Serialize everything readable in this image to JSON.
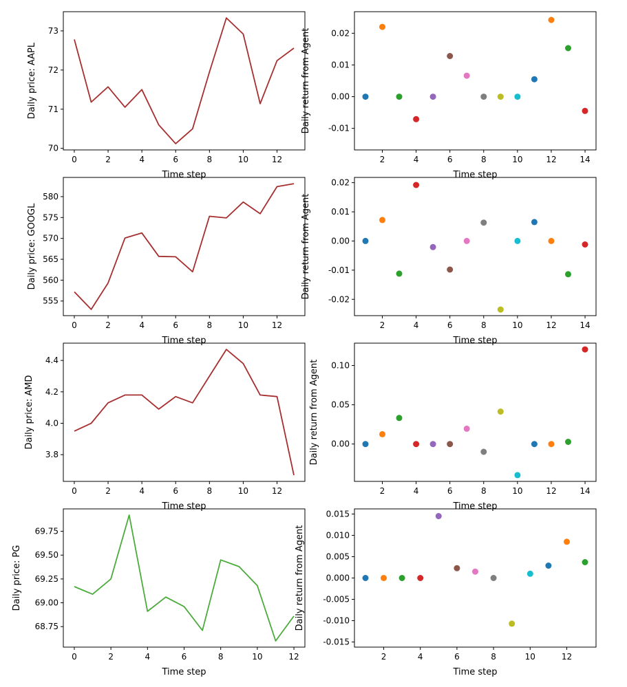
{
  "chart_data": [
    {
      "type": "line",
      "xlabel": "Time step",
      "ylabel": "Daily price: AAPL",
      "x": [
        0,
        1,
        2,
        3,
        4,
        5,
        6,
        7,
        8,
        9,
        10,
        11,
        12,
        13
      ],
      "values": [
        72.78,
        71.18,
        71.57,
        71.05,
        71.5,
        70.6,
        70.12,
        70.5,
        71.95,
        73.33,
        72.92,
        71.14,
        72.24,
        72.56
      ],
      "xticks": [
        0,
        2,
        4,
        6,
        8,
        10,
        12
      ],
      "yticks": [
        70,
        71,
        72,
        73
      ],
      "xlim": [
        -0.65,
        13.65
      ],
      "ylim": [
        69.96,
        73.49
      ],
      "line_color": "#a62e2e",
      "ytick_decimals": 0
    },
    {
      "type": "scatter",
      "xlabel": "Time step",
      "ylabel": "Daily return from Agent",
      "x": [
        1,
        2,
        3,
        4,
        5,
        6,
        7,
        8,
        9,
        10,
        11,
        12,
        13,
        14
      ],
      "values": [
        0.0,
        0.022,
        0.0,
        -0.0071,
        0.0,
        0.0128,
        0.0066,
        0.0,
        0.0,
        0.0,
        0.0055,
        0.0242,
        0.0153,
        -0.0045
      ],
      "xticks": [
        2,
        4,
        6,
        8,
        10,
        12,
        14
      ],
      "yticks": [
        -0.01,
        0.0,
        0.01,
        0.02
      ],
      "xlim": [
        0.35,
        14.65
      ],
      "ylim": [
        -0.0168,
        0.0268
      ],
      "ytick_decimals": 2
    },
    {
      "type": "line",
      "xlabel": "Time step",
      "ylabel": "Daily price: GOOGL",
      "x": [
        0,
        1,
        2,
        3,
        4,
        5,
        6,
        7,
        8,
        9,
        10,
        11,
        12,
        13
      ],
      "values": [
        557.2,
        553.0,
        559.3,
        570.1,
        571.3,
        565.7,
        565.6,
        562.0,
        575.3,
        574.9,
        578.7,
        575.9,
        582.4,
        583.1
      ],
      "xticks": [
        0,
        2,
        4,
        6,
        8,
        10,
        12
      ],
      "yticks": [
        555,
        560,
        565,
        570,
        575,
        580
      ],
      "xlim": [
        -0.65,
        13.65
      ],
      "ylim": [
        551.5,
        584.6
      ],
      "line_color": "#a62e2e",
      "ytick_decimals": 0
    },
    {
      "type": "scatter",
      "xlabel": "Time step",
      "ylabel": "Daily return from Agent",
      "x": [
        1,
        2,
        3,
        4,
        5,
        6,
        7,
        8,
        9,
        10,
        11,
        12,
        13,
        14
      ],
      "values": [
        0.0,
        0.0072,
        -0.0112,
        0.0192,
        -0.0021,
        -0.0098,
        0.0,
        0.0063,
        -0.0235,
        0.0,
        0.0065,
        0.0,
        -0.0114,
        -0.0012
      ],
      "xticks": [
        2,
        4,
        6,
        8,
        10,
        12,
        14
      ],
      "yticks": [
        -0.02,
        -0.01,
        0.0,
        0.01,
        0.02
      ],
      "xlim": [
        0.35,
        14.65
      ],
      "ylim": [
        -0.0256,
        0.0218
      ],
      "ytick_decimals": 2
    },
    {
      "type": "line",
      "xlabel": "Time step",
      "ylabel": "Daily price: AMD",
      "x": [
        0,
        1,
        2,
        3,
        4,
        5,
        6,
        7,
        8,
        9,
        10,
        11,
        12,
        13
      ],
      "values": [
        3.95,
        4.0,
        4.13,
        4.18,
        4.18,
        4.09,
        4.17,
        4.13,
        4.3,
        4.47,
        4.38,
        4.18,
        4.17,
        3.67
      ],
      "xticks": [
        0,
        2,
        4,
        6,
        8,
        10,
        12
      ],
      "yticks": [
        3.8,
        4.0,
        4.2,
        4.4
      ],
      "xlim": [
        -0.65,
        13.65
      ],
      "ylim": [
        3.63,
        4.51
      ],
      "line_color": "#a62e2e",
      "ytick_decimals": 1
    },
    {
      "type": "scatter",
      "xlabel": "Time step",
      "ylabel": "Daily return from Agent",
      "x": [
        1,
        2,
        3,
        4,
        5,
        6,
        7,
        8,
        9,
        10,
        11,
        12,
        13,
        14
      ],
      "values": [
        0.0,
        0.0125,
        0.0332,
        0.0,
        0.0,
        0.0,
        0.0195,
        -0.0099,
        0.0413,
        -0.0396,
        0.0,
        0.0,
        0.0028,
        0.1205
      ],
      "xticks": [
        2,
        4,
        6,
        8,
        10,
        12,
        14
      ],
      "yticks": [
        0.0,
        0.05,
        0.1
      ],
      "xlim": [
        0.35,
        14.65
      ],
      "ylim": [
        -0.0476,
        0.1285
      ],
      "ytick_decimals": 2
    },
    {
      "type": "line",
      "xlabel": "Time step",
      "ylabel": "Daily price: PG",
      "x": [
        0,
        1,
        2,
        3,
        4,
        5,
        6,
        7,
        8,
        9,
        10,
        11,
        12
      ],
      "values": [
        69.17,
        69.09,
        69.25,
        69.92,
        68.91,
        69.06,
        68.96,
        68.71,
        69.45,
        69.38,
        69.18,
        68.6,
        68.86
      ],
      "xticks": [
        0,
        2,
        4,
        6,
        8,
        10,
        12
      ],
      "yticks": [
        68.75,
        69.0,
        69.25,
        69.5,
        69.75
      ],
      "xlim": [
        -0.6,
        12.6
      ],
      "ylim": [
        68.535,
        69.985
      ],
      "line_color": "#4aab3a",
      "ytick_decimals": 2
    },
    {
      "type": "scatter",
      "xlabel": "Time step",
      "ylabel": "Daily return from Agent",
      "x": [
        1,
        2,
        3,
        4,
        5,
        6,
        7,
        8,
        9,
        10,
        11,
        12,
        13
      ],
      "values": [
        0.0,
        0.0,
        0.0,
        0.0,
        0.0145,
        0.0023,
        0.0015,
        0.0,
        -0.0107,
        0.001,
        0.0029,
        0.0085,
        0.0037
      ],
      "xticks": [
        2,
        4,
        6,
        8,
        10,
        12
      ],
      "yticks": [
        -0.015,
        -0.01,
        -0.005,
        0.0,
        0.005,
        0.01,
        0.015
      ],
      "xlim": [
        0.4,
        13.6
      ],
      "ylim": [
        -0.0162,
        0.0162
      ],
      "ytick_decimals": 3
    }
  ],
  "palette": [
    "#1f77b4",
    "#ff7f0e",
    "#2ca02c",
    "#d62728",
    "#9467bd",
    "#8c564b",
    "#e377c2",
    "#7f7f7f",
    "#bcbd22",
    "#17becf"
  ]
}
